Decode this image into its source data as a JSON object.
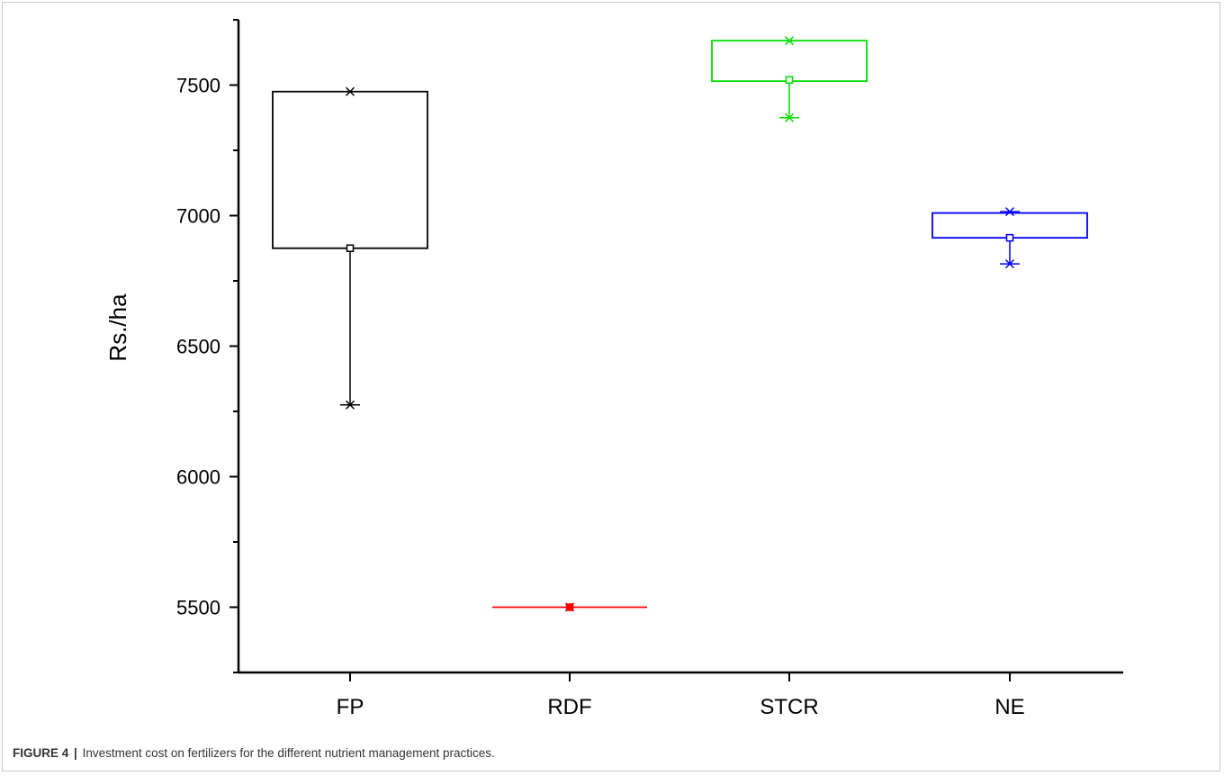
{
  "figure": {
    "caption_label": "FIGURE 4",
    "caption_separator": "|",
    "caption_text": "Investment cost on fertilizers for the different nutrient management practices."
  },
  "chart_data": {
    "type": "box",
    "ylabel": "Rs./ha",
    "xlabel": "",
    "ylim": [
      5250,
      7750
    ],
    "yticks": [
      5500,
      6000,
      6500,
      7000,
      7500
    ],
    "categories": [
      "FP",
      "RDF",
      "STCR",
      "NE"
    ],
    "boxes": [
      {
        "category": "FP",
        "color": "#000000",
        "box_low": 6875,
        "box_high": 7475,
        "median": 6875,
        "whisker_low": 6275,
        "whisker_high": 7475,
        "max": 7475,
        "min": 6275
      },
      {
        "category": "RDF",
        "color": "#ff0000",
        "box_low": 5500,
        "box_high": 5500,
        "median": 5500,
        "whisker_low": 5500,
        "whisker_high": 5500,
        "max": 5500,
        "min": 5500
      },
      {
        "category": "STCR",
        "color": "#00dd00",
        "box_low": 7515,
        "box_high": 7670,
        "median": 7520,
        "whisker_low": 7375,
        "whisker_high": 7670,
        "max": 7670,
        "min": 7375
      },
      {
        "category": "NE",
        "color": "#0000ff",
        "box_low": 6915,
        "box_high": 7010,
        "median": 6915,
        "whisker_low": 6815,
        "whisker_high": 7015,
        "max": 7015,
        "min": 6815
      }
    ],
    "grid": false,
    "legend": "none"
  }
}
